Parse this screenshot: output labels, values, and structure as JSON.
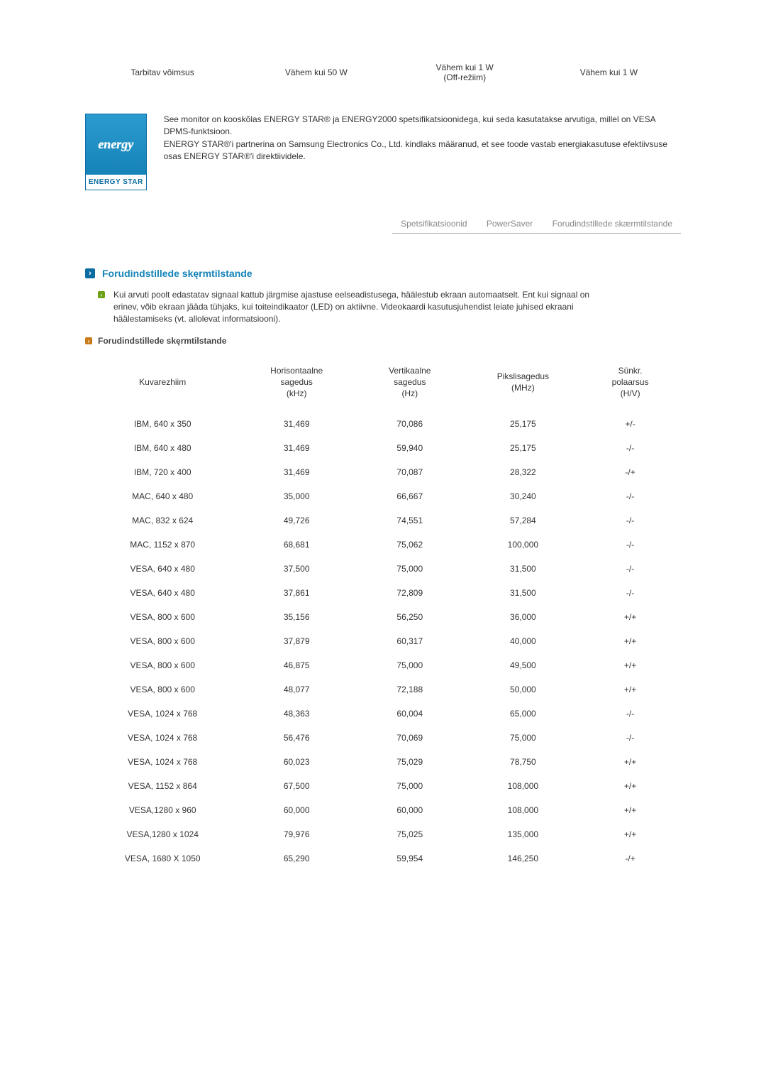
{
  "top_row": {
    "c1": "Tarbitav võimsus",
    "c2": "Vähem kui 50 W",
    "c3": "Vähem kui 1 W\n(Off-režiim)",
    "c4": "Vähem kui 1 W"
  },
  "energy_star": {
    "logo_script": "energy",
    "logo_bar": "ENERGY STAR",
    "text": "See monitor on kooskõlas ENERGY STAR® ja ENERGY2000 spetsifikatsioonidega, kui seda kasutatakse arvutiga, millel on VESA DPMS-funktsioon.\nENERGY STAR®'i partnerina on Samsung Electronics Co., Ltd. kindlaks määranud, et see toode vastab energiakasutuse efektiivsuse osas ENERGY STAR®'i direktiividele."
  },
  "tabs": {
    "t1": "Spetsifikatsioonid",
    "t2": "PowerSaver",
    "t3": "Forudindstillede skærmtilstande"
  },
  "section": {
    "title": "Forudindstillede skęrmtilstande",
    "intro": "Kui arvuti poolt edastatav signaal kattub järgmise ajastuse eelseadistusega, häälestub ekraan automaatselt. Ent kui signaal on erinev, võib ekraan jääda tühjaks, kui toiteindikaator (LED) on aktiivne. Videokaardi kasutusjuhendist leiate juhised ekraani häälestamiseks (vt. allolevat informatsiooni).",
    "subtitle": "Forudindstillede skęrmtilstande"
  },
  "columns": {
    "c0": "Kuvarezhiim",
    "c1": "Horisontaalne\nsagedus\n(kHz)",
    "c2": "Vertikaalne\nsagedus\n(Hz)",
    "c3": "Pikslisagedus\n(MHz)",
    "c4": "Sünkr.\npolaarsus\n(H/V)"
  },
  "rows": [
    {
      "mode": "IBM, 640 x 350",
      "h": "31,469",
      "v": "70,086",
      "p": "25,175",
      "s": "+/-"
    },
    {
      "mode": "IBM, 640 x 480",
      "h": "31,469",
      "v": "59,940",
      "p": "25,175",
      "s": "-/-"
    },
    {
      "mode": "IBM, 720 x 400",
      "h": "31,469",
      "v": "70,087",
      "p": "28,322",
      "s": "-/+"
    },
    {
      "mode": "MAC, 640 x 480",
      "h": "35,000",
      "v": "66,667",
      "p": "30,240",
      "s": "-/-"
    },
    {
      "mode": "MAC, 832 x 624",
      "h": "49,726",
      "v": "74,551",
      "p": "57,284",
      "s": "-/-"
    },
    {
      "mode": "MAC, 1152 x 870",
      "h": "68,681",
      "v": "75,062",
      "p": "100,000",
      "s": "-/-"
    },
    {
      "mode": "VESA, 640 x 480",
      "h": "37,500",
      "v": "75,000",
      "p": "31,500",
      "s": "-/-"
    },
    {
      "mode": "VESA, 640 x 480",
      "h": "37,861",
      "v": "72,809",
      "p": "31,500",
      "s": "-/-"
    },
    {
      "mode": "VESA, 800 x 600",
      "h": "35,156",
      "v": "56,250",
      "p": "36,000",
      "s": "+/+"
    },
    {
      "mode": "VESA, 800 x 600",
      "h": "37,879",
      "v": "60,317",
      "p": "40,000",
      "s": "+/+"
    },
    {
      "mode": "VESA, 800 x 600",
      "h": "46,875",
      "v": "75,000",
      "p": "49,500",
      "s": "+/+"
    },
    {
      "mode": "VESA, 800 x 600",
      "h": "48,077",
      "v": "72,188",
      "p": "50,000",
      "s": "+/+"
    },
    {
      "mode": "VESA, 1024 x 768",
      "h": "48,363",
      "v": "60,004",
      "p": "65,000",
      "s": "-/-"
    },
    {
      "mode": "VESA, 1024 x 768",
      "h": "56,476",
      "v": "70,069",
      "p": "75,000",
      "s": "-/-"
    },
    {
      "mode": "VESA, 1024 x 768",
      "h": "60,023",
      "v": "75,029",
      "p": "78,750",
      "s": "+/+"
    },
    {
      "mode": "VESA, 1152 x 864",
      "h": "67,500",
      "v": "75,000",
      "p": "108,000",
      "s": "+/+"
    },
    {
      "mode": "VESA,1280 x 960",
      "h": "60,000",
      "v": "60,000",
      "p": "108,000",
      "s": "+/+"
    },
    {
      "mode": "VESA,1280 x 1024",
      "h": "79,976",
      "v": "75,025",
      "p": "135,000",
      "s": "+/+"
    },
    {
      "mode": "VESA, 1680 X 1050",
      "h": "65,290",
      "v": "59,954",
      "p": "146,250",
      "s": "-/+"
    }
  ]
}
